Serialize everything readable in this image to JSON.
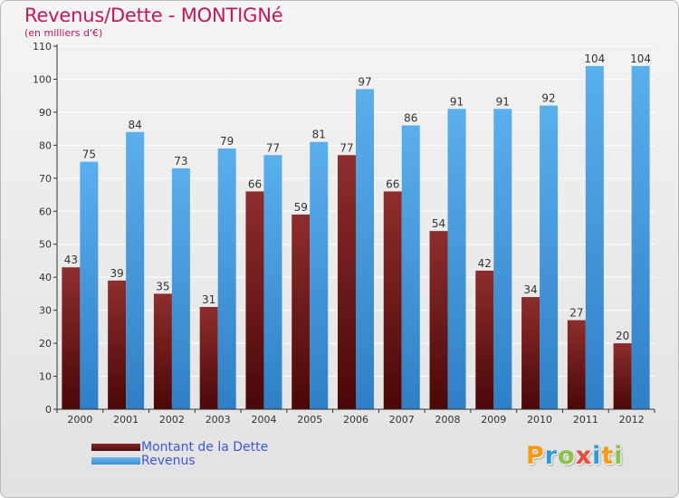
{
  "chart_data": {
    "type": "bar",
    "title": "Revenus/Dette - MONTIGNé",
    "subtitle": "(en milliers d'€)",
    "categories": [
      "2000",
      "2001",
      "2002",
      "2003",
      "2004",
      "2005",
      "2006",
      "2007",
      "2008",
      "2009",
      "2010",
      "2011",
      "2012"
    ],
    "series": [
      {
        "name": "Montant de la Dette",
        "values": [
          43,
          39,
          35,
          31,
          66,
          59,
          77,
          66,
          54,
          42,
          34,
          27,
          20
        ]
      },
      {
        "name": "Revenus",
        "values": [
          75,
          84,
          73,
          79,
          77,
          81,
          97,
          86,
          91,
          91,
          92,
          104,
          104
        ]
      }
    ],
    "yticks": [
      0,
      10,
      20,
      30,
      40,
      50,
      60,
      70,
      80,
      90,
      100,
      110
    ],
    "ylim": [
      0,
      110
    ],
    "grid": true,
    "legend": "bottom-left"
  },
  "colors": {
    "title": "#c2185b",
    "dette": "#7a1f1f",
    "revenus": "#4da3e6",
    "legend_text": "#3b57d8"
  },
  "logo": {
    "text": "Proxiti",
    "letters": [
      {
        "ch": "P",
        "color": "#f39c12"
      },
      {
        "ch": "r",
        "color": "#2e9ad8"
      },
      {
        "ch": "o",
        "color": "#8bc34a"
      },
      {
        "ch": "x",
        "color": "#e74c3c"
      },
      {
        "ch": "i",
        "color": "#2e9ad8"
      },
      {
        "ch": "t",
        "color": "#f39c12"
      },
      {
        "ch": "i",
        "color": "#8bc34a"
      }
    ]
  }
}
